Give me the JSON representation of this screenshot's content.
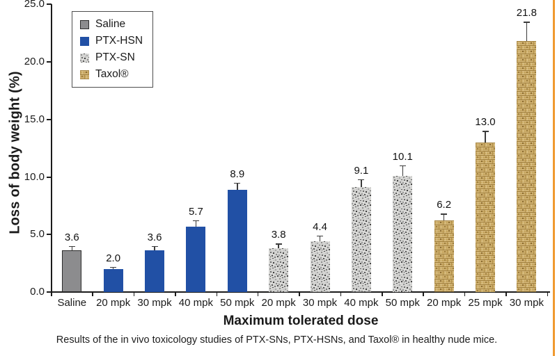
{
  "page": {
    "background": "#ffffff",
    "side_rule_color": "#f0992f"
  },
  "chart_data": {
    "type": "bar",
    "title": "",
    "xlabel": "Maximum tolerated dose",
    "ylabel": "Loss of body weight (%)",
    "ylim": [
      0,
      25
    ],
    "ytick_values": [
      0,
      5,
      10,
      15,
      20,
      25
    ],
    "ytick_labels": [
      "0.0",
      "5.0",
      "10.0",
      "15.0",
      "20.0",
      "25.0"
    ],
    "grid": false,
    "legend_position": "top-left",
    "axis_color": "#1a1a1a",
    "series_styles": [
      {
        "name": "Saline",
        "texture": "solid",
        "fill": "#8c8c8e",
        "border": "#2b2b2b"
      },
      {
        "name": "PTX-HSN",
        "texture": "solid",
        "fill": "#2150a5",
        "border": ""
      },
      {
        "name": "PTX-SN",
        "texture": "speckle",
        "fill": "#cfcfcd",
        "border": ""
      },
      {
        "name": "Taxol®",
        "texture": "weave",
        "fill": "#cfb172",
        "border": ""
      }
    ],
    "bars": [
      {
        "label": "Saline",
        "series": "Saline",
        "value": 3.6,
        "value_label": "3.6",
        "err": 0.4
      },
      {
        "label": "20 mpk",
        "series": "PTX-HSN",
        "value": 2.0,
        "value_label": "2.0",
        "err": 0.2
      },
      {
        "label": "30 mpk",
        "series": "PTX-HSN",
        "value": 3.6,
        "value_label": "3.6",
        "err": 0.4
      },
      {
        "label": "40 mpk",
        "series": "PTX-HSN",
        "value": 5.7,
        "value_label": "5.7",
        "err": 0.55
      },
      {
        "label": "50 mpk",
        "series": "PTX-HSN",
        "value": 8.9,
        "value_label": "8.9",
        "err": 0.6
      },
      {
        "label": "20 mpk",
        "series": "PTX-SN",
        "value": 3.8,
        "value_label": "3.8",
        "err": 0.4
      },
      {
        "label": "30 mpk",
        "series": "PTX-SN",
        "value": 4.4,
        "value_label": "4.4",
        "err": 0.5
      },
      {
        "label": "40 mpk",
        "series": "PTX-SN",
        "value": 9.1,
        "value_label": "9.1",
        "err": 0.7
      },
      {
        "label": "50 mpk",
        "series": "PTX-SN",
        "value": 10.1,
        "value_label": "10.1",
        "err": 0.9
      },
      {
        "label": "20 mpk",
        "series": "Taxol®",
        "value": 6.2,
        "value_label": "6.2",
        "err": 0.6
      },
      {
        "label": "25 mpk",
        "series": "Taxol®",
        "value": 13.0,
        "value_label": "13.0",
        "err": 1.0
      },
      {
        "label": "30 mpk",
        "series": "Taxol®",
        "value": 21.8,
        "value_label": "21.8",
        "err": 1.7
      }
    ],
    "caption": "Results of the in vivo toxicology studies of PTX-SNs, PTX-HSNs, and Taxol® in healthy nude mice."
  }
}
